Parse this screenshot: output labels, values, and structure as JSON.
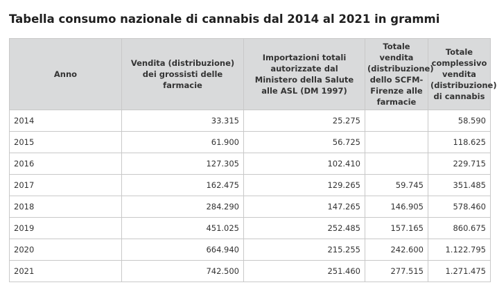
{
  "title": "Tabella consumo nazionale di cannabis dal 2014 al 2021 in grammi",
  "table": {
    "headers": [
      "Anno",
      "Vendita (distribuzione) dei grossisti delle farmacie",
      "Importazioni totali autorizzate dal Ministero della Salute alle ASL (DM 1997)",
      "Totale vendita (distribuzione) dello SCFM-Firenze alle farmacie",
      "Totale complessivo vendita (distribuzione) di cannabis"
    ],
    "rows": [
      [
        "2014",
        "33.315",
        "25.275",
        "",
        "58.590"
      ],
      [
        "2015",
        "61.900",
        "56.725",
        "",
        "118.625"
      ],
      [
        "2016",
        "127.305",
        "102.410",
        "",
        "229.715"
      ],
      [
        "2017",
        "162.475",
        "129.265",
        "59.745",
        "351.485"
      ],
      [
        "2018",
        "284.290",
        "147.265",
        "146.905",
        "578.460"
      ],
      [
        "2019",
        "451.025",
        "252.485",
        "157.165",
        "860.675"
      ],
      [
        "2020",
        "664.940",
        "215.255",
        "242.600",
        "1.122.795"
      ],
      [
        "2021",
        "742.500",
        "251.460",
        "277.515",
        "1.271.475"
      ]
    ]
  }
}
